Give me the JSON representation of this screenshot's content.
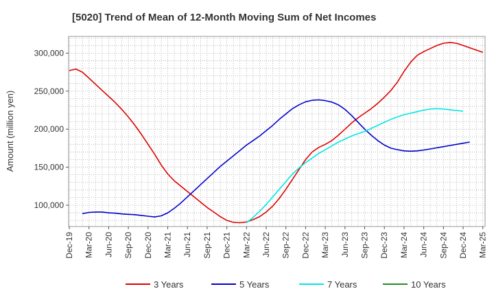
{
  "chart_data": {
    "type": "line",
    "title": "[5020]  Trend of Mean of 12-Month Moving Sum of Net Incomes",
    "xlabel": "",
    "ylabel": "Amount (million yen)",
    "x_ticks": [
      "Dec-19",
      "Mar-20",
      "Jun-20",
      "Sep-20",
      "Dec-20",
      "Mar-21",
      "Jun-21",
      "Sep-21",
      "Dec-21",
      "Mar-22",
      "Jun-22",
      "Sep-22",
      "Dec-22",
      "Mar-23",
      "Jun-23",
      "Sep-23",
      "Dec-23",
      "Mar-24",
      "Jun-24",
      "Sep-24",
      "Dec-24",
      "Mar-25"
    ],
    "y_ticks": [
      100000,
      150000,
      200000,
      250000,
      300000
    ],
    "y_tick_labels": [
      "100,000",
      "150,000",
      "200,000",
      "250,000",
      "300,000"
    ],
    "ylim": [
      72000,
      322000
    ],
    "x_range_months": [
      0,
      63
    ],
    "grid": true,
    "legend_position": "bottom",
    "series": [
      {
        "name": "3 Years",
        "color": "#dd0000",
        "points": [
          [
            0,
            277000
          ],
          [
            1,
            279000
          ],
          [
            2,
            275000
          ],
          [
            3,
            267000
          ],
          [
            4,
            259000
          ],
          [
            5,
            251000
          ],
          [
            6,
            243000
          ],
          [
            7,
            235000
          ],
          [
            8,
            226000
          ],
          [
            9,
            216000
          ],
          [
            10,
            205000
          ],
          [
            11,
            193000
          ],
          [
            12,
            180000
          ],
          [
            13,
            167000
          ],
          [
            14,
            153000
          ],
          [
            15,
            141000
          ],
          [
            16,
            132000
          ],
          [
            17,
            125000
          ],
          [
            18,
            118000
          ],
          [
            19,
            111000
          ],
          [
            20,
            104000
          ],
          [
            21,
            97000
          ],
          [
            22,
            91000
          ],
          [
            23,
            85000
          ],
          [
            24,
            80000
          ],
          [
            25,
            77500
          ],
          [
            26,
            77000
          ],
          [
            27,
            78000
          ],
          [
            28,
            81000
          ],
          [
            29,
            85000
          ],
          [
            30,
            91000
          ],
          [
            31,
            99000
          ],
          [
            32,
            109000
          ],
          [
            33,
            121000
          ],
          [
            34,
            134000
          ],
          [
            35,
            147000
          ],
          [
            36,
            160000
          ],
          [
            37,
            170000
          ],
          [
            38,
            176000
          ],
          [
            39,
            180000
          ],
          [
            40,
            185000
          ],
          [
            41,
            192000
          ],
          [
            42,
            200000
          ],
          [
            43,
            208000
          ],
          [
            44,
            215000
          ],
          [
            45,
            221000
          ],
          [
            46,
            227000
          ],
          [
            47,
            234000
          ],
          [
            48,
            242000
          ],
          [
            49,
            251000
          ],
          [
            50,
            262000
          ],
          [
            51,
            276000
          ],
          [
            52,
            288000
          ],
          [
            53,
            297000
          ],
          [
            54,
            302000
          ],
          [
            55,
            306000
          ],
          [
            56,
            310000
          ],
          [
            57,
            313000
          ],
          [
            58,
            314000
          ],
          [
            59,
            313000
          ],
          [
            60,
            310000
          ],
          [
            61,
            307000
          ],
          [
            62,
            304000
          ],
          [
            63,
            301000
          ]
        ]
      },
      {
        "name": "5 Years",
        "color": "#0000cc",
        "points": [
          [
            2,
            89000
          ],
          [
            3,
            90500
          ],
          [
            4,
            91000
          ],
          [
            5,
            91000
          ],
          [
            6,
            90000
          ],
          [
            7,
            89500
          ],
          [
            8,
            88500
          ],
          [
            9,
            88000
          ],
          [
            10,
            87500
          ],
          [
            11,
            86500
          ],
          [
            12,
            85500
          ],
          [
            13,
            84500
          ],
          [
            14,
            86000
          ],
          [
            15,
            90000
          ],
          [
            16,
            96000
          ],
          [
            17,
            103000
          ],
          [
            18,
            111000
          ],
          [
            19,
            119000
          ],
          [
            20,
            127000
          ],
          [
            21,
            135000
          ],
          [
            22,
            143000
          ],
          [
            23,
            151000
          ],
          [
            24,
            158000
          ],
          [
            25,
            165000
          ],
          [
            26,
            172000
          ],
          [
            27,
            179000
          ],
          [
            28,
            185000
          ],
          [
            29,
            191000
          ],
          [
            30,
            198000
          ],
          [
            31,
            205000
          ],
          [
            32,
            213000
          ],
          [
            33,
            220000
          ],
          [
            34,
            227000
          ],
          [
            35,
            232000
          ],
          [
            36,
            236000
          ],
          [
            37,
            238000
          ],
          [
            38,
            238500
          ],
          [
            39,
            237500
          ],
          [
            40,
            235500
          ],
          [
            41,
            232000
          ],
          [
            42,
            226000
          ],
          [
            43,
            218000
          ],
          [
            44,
            209000
          ],
          [
            45,
            200000
          ],
          [
            46,
            192000
          ],
          [
            47,
            185000
          ],
          [
            48,
            179000
          ],
          [
            49,
            175000
          ],
          [
            50,
            173000
          ],
          [
            51,
            171500
          ],
          [
            52,
            171000
          ],
          [
            53,
            171500
          ],
          [
            54,
            172500
          ],
          [
            55,
            174000
          ],
          [
            56,
            175500
          ],
          [
            57,
            177000
          ],
          [
            58,
            178500
          ],
          [
            59,
            180000
          ],
          [
            60,
            181500
          ],
          [
            61,
            183000
          ]
        ]
      },
      {
        "name": "7 Years",
        "color": "#00e5e5",
        "points": [
          [
            27,
            77000
          ],
          [
            28,
            84000
          ],
          [
            29,
            92000
          ],
          [
            30,
            101000
          ],
          [
            31,
            111000
          ],
          [
            32,
            121000
          ],
          [
            33,
            131000
          ],
          [
            34,
            141000
          ],
          [
            35,
            149000
          ],
          [
            36,
            156000
          ],
          [
            37,
            162000
          ],
          [
            38,
            168000
          ],
          [
            39,
            173000
          ],
          [
            40,
            178000
          ],
          [
            41,
            183000
          ],
          [
            42,
            187000
          ],
          [
            43,
            191000
          ],
          [
            44,
            194000
          ],
          [
            45,
            197000
          ],
          [
            46,
            201000
          ],
          [
            47,
            205000
          ],
          [
            48,
            209000
          ],
          [
            49,
            213000
          ],
          [
            50,
            216000
          ],
          [
            51,
            219000
          ],
          [
            52,
            221000
          ],
          [
            53,
            223000
          ],
          [
            54,
            225000
          ],
          [
            55,
            226500
          ],
          [
            56,
            227000
          ],
          [
            57,
            226500
          ],
          [
            58,
            225500
          ],
          [
            59,
            224500
          ],
          [
            60,
            223500
          ]
        ]
      },
      {
        "name": "10 Years",
        "color": "#228b22",
        "points": []
      }
    ]
  }
}
